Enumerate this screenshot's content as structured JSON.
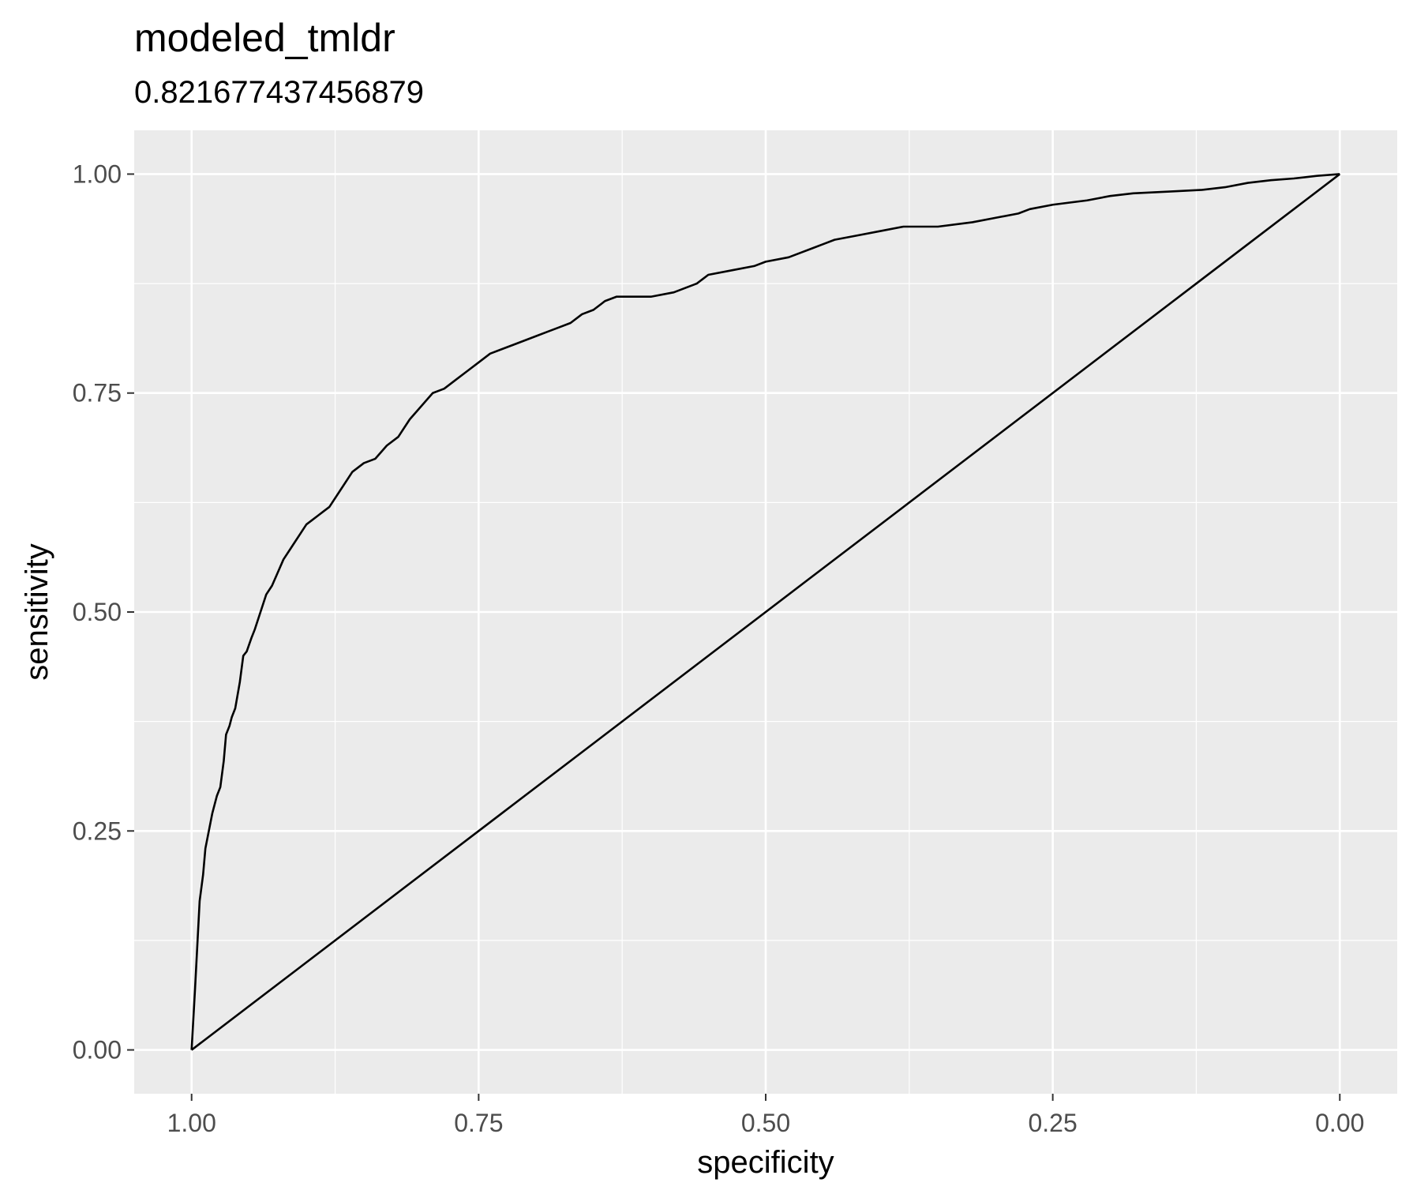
{
  "chart_data": {
    "type": "line",
    "title": "modeled_tmldr",
    "subtitle": "0.821677437456879",
    "xlabel": "specificity",
    "ylabel": "sensitivity",
    "x_reversed": true,
    "xlim": [
      1.05,
      -0.05
    ],
    "ylim": [
      -0.05,
      1.05
    ],
    "xticks": [
      1.0,
      0.75,
      0.5,
      0.25,
      0.0
    ],
    "xtick_labels": [
      "1.00",
      "0.75",
      "0.50",
      "0.25",
      "0.00"
    ],
    "yticks": [
      0.0,
      0.25,
      0.5,
      0.75,
      1.0
    ],
    "ytick_labels": [
      "0.00",
      "0.25",
      "0.50",
      "0.75",
      "1.00"
    ],
    "grid": true,
    "panel_color": "#ebebeb",
    "grid_color": "#ffffff",
    "line_color": "#000000",
    "series": [
      {
        "x": [
          1.0,
          0.997,
          0.995,
          0.993,
          0.99,
          0.988,
          0.985,
          0.982,
          0.978,
          0.975,
          0.972,
          0.97,
          0.967,
          0.965,
          0.962,
          0.958,
          0.955,
          0.952,
          0.948,
          0.945,
          0.94,
          0.935,
          0.93,
          0.925,
          0.92,
          0.915,
          0.91,
          0.905,
          0.9,
          0.895,
          0.89,
          0.885,
          0.88,
          0.87,
          0.86,
          0.85,
          0.84,
          0.83,
          0.82,
          0.81,
          0.8,
          0.79,
          0.78,
          0.77,
          0.76,
          0.75,
          0.74,
          0.73,
          0.72,
          0.7,
          0.69,
          0.68,
          0.67,
          0.66,
          0.65,
          0.64,
          0.63,
          0.62,
          0.61,
          0.6,
          0.58,
          0.56,
          0.55,
          0.53,
          0.51,
          0.5,
          0.48,
          0.46,
          0.45,
          0.44,
          0.42,
          0.4,
          0.38,
          0.35,
          0.32,
          0.3,
          0.28,
          0.27,
          0.25,
          0.22,
          0.2,
          0.18,
          0.15,
          0.12,
          0.1,
          0.08,
          0.06,
          0.04,
          0.02,
          0.0
        ],
        "y": [
          0.0,
          0.07,
          0.12,
          0.17,
          0.2,
          0.23,
          0.25,
          0.27,
          0.29,
          0.3,
          0.33,
          0.36,
          0.37,
          0.38,
          0.39,
          0.42,
          0.45,
          0.455,
          0.47,
          0.48,
          0.5,
          0.52,
          0.53,
          0.545,
          0.56,
          0.57,
          0.58,
          0.59,
          0.6,
          0.605,
          0.61,
          0.615,
          0.62,
          0.64,
          0.66,
          0.67,
          0.675,
          0.69,
          0.7,
          0.72,
          0.735,
          0.75,
          0.755,
          0.765,
          0.775,
          0.785,
          0.795,
          0.8,
          0.805,
          0.815,
          0.82,
          0.825,
          0.83,
          0.84,
          0.845,
          0.855,
          0.86,
          0.86,
          0.86,
          0.86,
          0.865,
          0.875,
          0.885,
          0.89,
          0.895,
          0.9,
          0.905,
          0.915,
          0.92,
          0.925,
          0.93,
          0.935,
          0.94,
          0.94,
          0.945,
          0.95,
          0.955,
          0.96,
          0.965,
          0.97,
          0.975,
          0.978,
          0.98,
          0.982,
          0.985,
          0.99,
          0.993,
          0.995,
          0.998,
          1.0
        ]
      },
      {
        "x": [
          1.0,
          0.0
        ],
        "y": [
          0.0,
          1.0
        ]
      }
    ]
  }
}
